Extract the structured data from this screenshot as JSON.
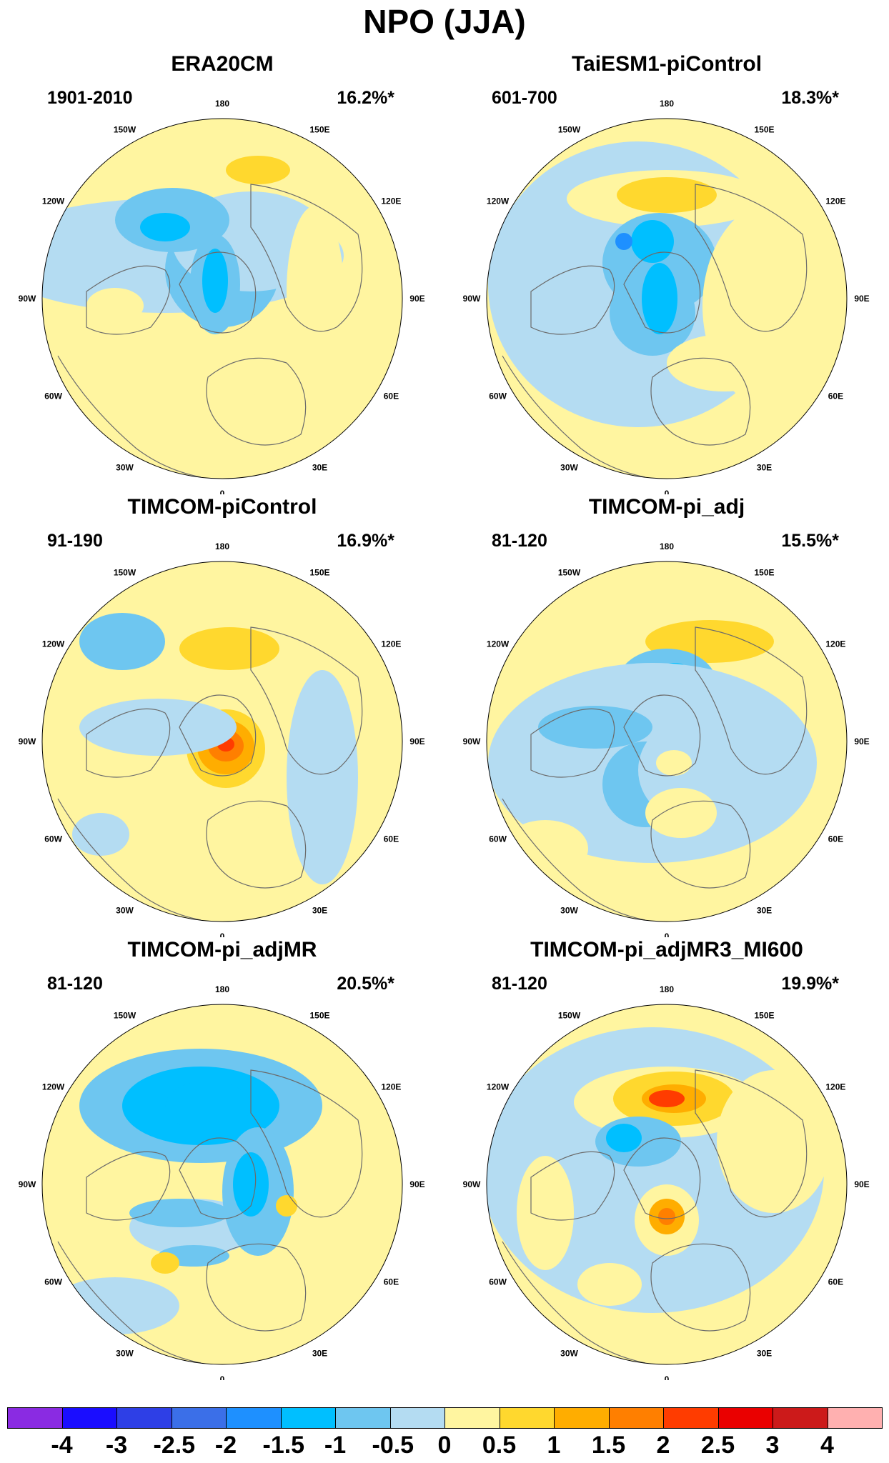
{
  "figure": {
    "title": "NPO (JJA)"
  },
  "panels": [
    {
      "name": "ERA20CM",
      "period": "1901-2010",
      "variance": "16.2%*"
    },
    {
      "name": "TaiESM1-piControl",
      "period": "601-700",
      "variance": "18.3%*"
    },
    {
      "name": "TIMCOM-piControl",
      "period": "91-190",
      "variance": "16.9%*"
    },
    {
      "name": "TIMCOM-pi_adj",
      "period": "81-120",
      "variance": "15.5%*"
    },
    {
      "name": "TIMCOM-pi_adjMR",
      "period": "81-120",
      "variance": "20.5%*"
    },
    {
      "name": "TIMCOM-pi_adjMR3_MI600",
      "period": "81-120",
      "variance": "19.9%*"
    }
  ],
  "longitude_labels": [
    "180",
    "150E",
    "120E",
    "90E",
    "60E",
    "30E",
    "0",
    "30W",
    "60W",
    "90W",
    "120W",
    "150W"
  ],
  "colorbar": {
    "colors": [
      "#8a2be2",
      "#1a0dff",
      "#2e3fe6",
      "#3b6fe8",
      "#1e90ff",
      "#00bfff",
      "#6ec6f0",
      "#b4dcf2",
      "#fff5a0",
      "#ffd82e",
      "#ffad00",
      "#ff7f00",
      "#ff3c00",
      "#ea0000",
      "#cc1a1a",
      "#ffb0b0"
    ],
    "labels": [
      "-4",
      "-3",
      "-2.5",
      "-2",
      "-1.5",
      "-1",
      "-0.5",
      "0",
      "0.5",
      "1",
      "1.5",
      "2",
      "2.5",
      "3",
      "4"
    ]
  }
}
